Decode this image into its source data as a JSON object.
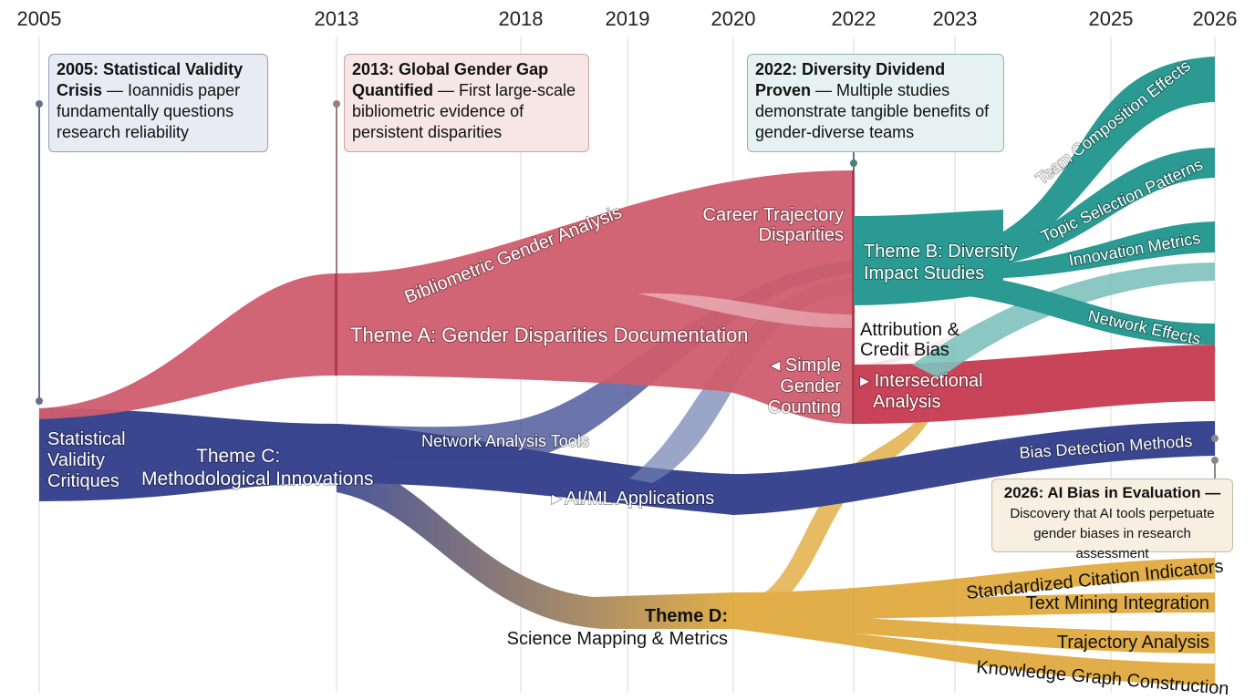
{
  "years": [
    "2005",
    "2013",
    "2018",
    "2019",
    "2020",
    "2022",
    "2023",
    "2025",
    "2026"
  ],
  "colors": {
    "theme_a": "#c94a5e",
    "theme_b": "#2a9a92",
    "theme_c": "#3b4690",
    "theme_d": "#e0a83a"
  },
  "callouts": {
    "c2005": {
      "title": "2005: Statistical Validity Crisis",
      "body": " — Ioannidis paper fundamentally questions research reliability"
    },
    "c2013": {
      "title": "2013: Global Gender Gap Quantified",
      "body": " — First large-scale bibliometric evidence of persistent disparities"
    },
    "c2022": {
      "title": "2022: Diversity Dividend Proven",
      "body": " — Multiple studies demonstrate tangible benefits of gender-diverse teams"
    },
    "c2026": {
      "title": "2026: AI Bias in Evaluation —",
      "body": "Discovery that AI tools perpetuate gender biases in research assessment"
    }
  },
  "labels": {
    "bibliometric": "Bibliometric Gender Analysis",
    "theme_a": "Theme A: Gender Disparities Documentation",
    "career_1": "Career Trajectory",
    "career_2": "Disparities",
    "simple_1": "◂ Simple",
    "simple_2": "Gender",
    "simple_3": "Counting",
    "attribution_1": "Attribution &",
    "attribution_2": "Credit Bias",
    "intersectional_1": "▸ Intersectional",
    "intersectional_2": "Analysis",
    "theme_b_1": "Theme B: Diversity",
    "theme_b_2": "Impact Studies",
    "team": "Team Composition Effects",
    "topic": "Topic Selection Patterns",
    "innovation": "Innovation Metrics",
    "network_effects": "Network Effects",
    "stat_1": "Statistical",
    "stat_2": "Validity",
    "stat_3": "Critiques",
    "theme_c_1": "Theme C:",
    "theme_c_2": "Methodological Innovations",
    "network_tools": "Network Analysis Tools",
    "aiml": "▸ AI/ML Applications",
    "bias_detection": "Bias Detection Methods",
    "theme_d_1": "Theme D:",
    "theme_d_2": "Science Mapping & Metrics",
    "citation": "Standardized Citation Indicators",
    "text_mining": "Text Mining Integration",
    "trajectory": "Trajectory Analysis",
    "knowledge_graph": "Knowledge Graph Construction"
  }
}
